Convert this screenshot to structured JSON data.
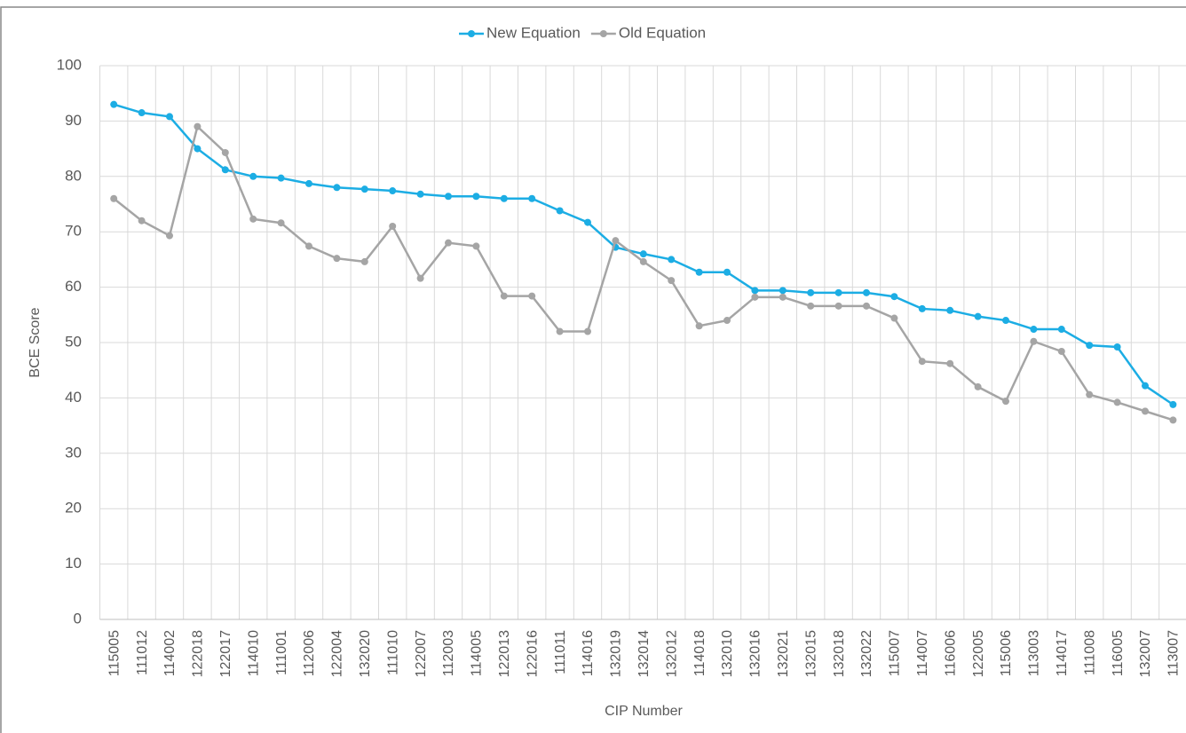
{
  "chart_data": {
    "type": "line",
    "x_label": "CIP Number",
    "y_label": "BCE Score",
    "categories": [
      "115005",
      "111012",
      "114002",
      "122018",
      "122017",
      "114010",
      "111001",
      "112006",
      "122004",
      "132020",
      "111010",
      "122007",
      "112003",
      "114005",
      "122013",
      "122016",
      "111011",
      "114016",
      "132019",
      "132014",
      "132012",
      "114018",
      "132010",
      "132016",
      "132021",
      "132015",
      "132018",
      "132022",
      "115007",
      "114007",
      "116006",
      "122005",
      "115006",
      "113003",
      "114017",
      "111008",
      "116005",
      "132007",
      "113007"
    ],
    "series": [
      {
        "name": "New Equation",
        "color": "#1cade4",
        "values": [
          93,
          91.5,
          90.8,
          85,
          81.2,
          80,
          79.7,
          78.7,
          78,
          77.7,
          77.4,
          76.8,
          76.4,
          76.4,
          76,
          76,
          73.8,
          71.7,
          67.2,
          66,
          65,
          62.7,
          62.7,
          59.4,
          59.4,
          59,
          59,
          59,
          58.3,
          56.1,
          55.8,
          54.7,
          54,
          52.4,
          52.4,
          49.5,
          49.2,
          42.2,
          38.8
        ]
      },
      {
        "name": "Old Equation",
        "color": "#a5a5a5",
        "values": [
          76,
          72,
          69.3,
          89,
          84.3,
          72.3,
          71.6,
          67.4,
          65.2,
          64.6,
          71,
          61.6,
          68,
          67.4,
          58.4,
          58.4,
          52,
          52,
          68.4,
          64.6,
          61.2,
          53,
          54,
          58.2,
          58.2,
          56.6,
          56.6,
          56.6,
          54.4,
          46.6,
          46.2,
          42,
          39.4,
          50.2,
          48.4,
          40.6,
          39.2,
          37.6,
          36
        ]
      }
    ],
    "ylim": [
      0,
      100
    ],
    "yticks": [
      0,
      10,
      20,
      30,
      40,
      50,
      60,
      70,
      80,
      90,
      100
    ],
    "grid": true,
    "legend": "top"
  }
}
